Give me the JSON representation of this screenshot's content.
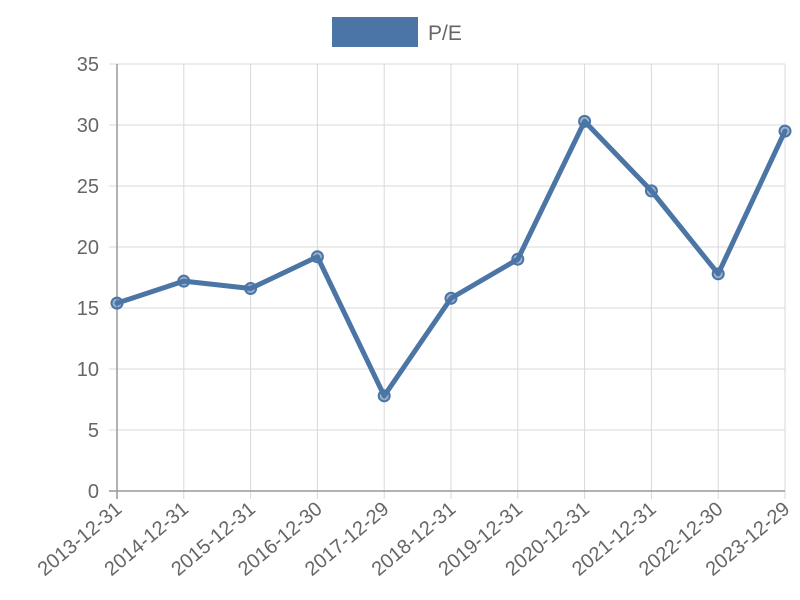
{
  "chart_data": {
    "type": "line",
    "title": "",
    "xlabel": "",
    "ylabel": "",
    "categories": [
      "2013-12-31",
      "2014-12-31",
      "2015-12-31",
      "2016-12-30",
      "2017-12-29",
      "2018-12-31",
      "2019-12-31",
      "2020-12-31",
      "2021-12-31",
      "2022-12-30",
      "2023-12-29"
    ],
    "series": [
      {
        "name": "P/E",
        "values": [
          15.4,
          17.2,
          16.6,
          19.2,
          7.8,
          15.8,
          19.0,
          30.3,
          24.6,
          17.8,
          29.5
        ]
      }
    ],
    "ylim": [
      0,
      35
    ],
    "yticks": [
      0,
      5,
      10,
      15,
      20,
      25,
      30,
      35
    ],
    "grid": true,
    "legend_position": "top-center",
    "colors": {
      "series": "#4a75a5",
      "grid": "#d9d9d9",
      "axis": "#999999",
      "text": "#666666"
    }
  }
}
